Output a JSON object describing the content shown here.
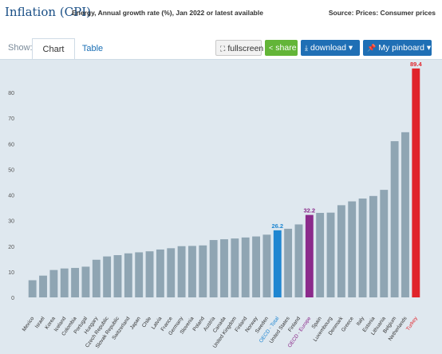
{
  "header": {
    "title": "Inflation (CPI)",
    "subtitle": "Energy, Annual growth rate (%), Jan 2022 or latest available",
    "source": "Source: Prices: Consumer prices"
  },
  "toolbar": {
    "show_label": "Show:",
    "tabs": [
      {
        "label": "Chart",
        "active": true
      },
      {
        "label": "Table",
        "active": false
      }
    ],
    "fullscreen_label": "fullscreen",
    "share_label": "share",
    "download_label": "download ▾",
    "pinboard_label": "My pinboard ▾"
  },
  "colors": {
    "default_bar": "#8fa5b3",
    "oecd_total": "#1f86d1",
    "oecd_europe": "#8b2a8b",
    "highlight": "#e0242b",
    "background": "#dfe8ef"
  },
  "chart_data": {
    "type": "bar",
    "title": "Inflation (CPI)",
    "ylim": [
      0,
      90
    ],
    "yticks": [
      0,
      10,
      20,
      30,
      40,
      50,
      60,
      70,
      80
    ],
    "grid": false,
    "categories": [
      "Mexico",
      "Israel",
      "Korea",
      "Iceland",
      "Colombia",
      "Portugal",
      "Hungary",
      "Czech Republic",
      "Slovak Republic",
      "Switzerland",
      "Japan",
      "Chile",
      "Latvia",
      "France",
      "Germany",
      "Slovenia",
      "Poland",
      "Austria",
      "Canada",
      "United Kingdom",
      "Finland",
      "Norway",
      "Sweden",
      "OECD - Total",
      "United States",
      "Finland",
      "OECD - Europe",
      "Spain",
      "Luxembourg",
      "Denmark",
      "Greece",
      "Italy",
      "Estonia",
      "Lithuania",
      "Belgium",
      "Netherlands",
      "Turkey"
    ],
    "values": [
      6.7,
      8.5,
      10.7,
      11.3,
      11.5,
      12.0,
      14.7,
      16.0,
      16.5,
      17.2,
      17.6,
      18.0,
      18.7,
      19.2,
      20.0,
      20.1,
      20.3,
      22.4,
      22.7,
      23.0,
      23.4,
      23.8,
      24.5,
      26.2,
      26.8,
      28.5,
      32.2,
      33.0,
      33.1,
      36.0,
      37.5,
      38.6,
      39.6,
      42.0,
      61.0,
      64.5,
      89.4
    ],
    "colors": [
      "default",
      "default",
      "default",
      "default",
      "default",
      "default",
      "default",
      "default",
      "default",
      "default",
      "default",
      "default",
      "default",
      "default",
      "default",
      "default",
      "default",
      "default",
      "default",
      "default",
      "default",
      "default",
      "default",
      "oecd_total",
      "default",
      "default",
      "oecd_europe",
      "default",
      "default",
      "default",
      "default",
      "default",
      "default",
      "default",
      "default",
      "default",
      "highlight"
    ],
    "data_labels": {
      "OECD - Total": "26.2",
      "OECD - Europe": "32.2",
      "Turkey": "89.4"
    }
  }
}
